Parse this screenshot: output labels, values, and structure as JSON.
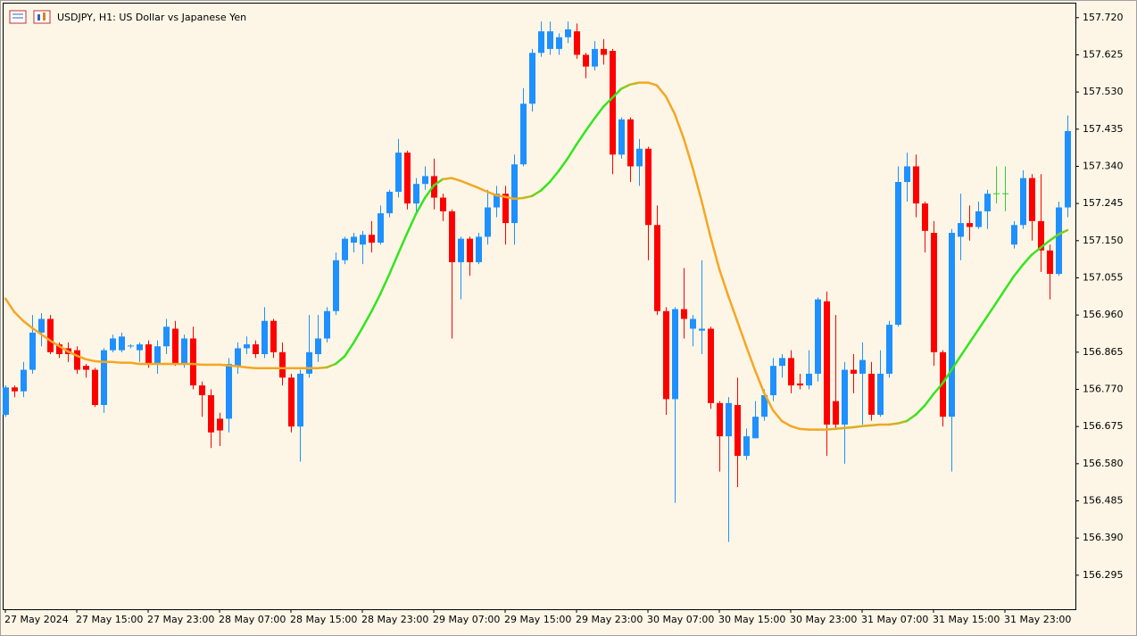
{
  "chart_data": {
    "type": "candlestick",
    "title": "USDJPY, H1:  US Dollar vs Japanese Yen",
    "categories": [
      "27 May 2024",
      null,
      null,
      null,
      null,
      null,
      null,
      null,
      "27 May 15:00",
      null,
      null,
      null,
      null,
      null,
      null,
      null,
      "27 May 23:00",
      null,
      null,
      null,
      null,
      null,
      null,
      null,
      "28 May 07:00",
      null,
      null,
      null,
      null,
      null,
      null,
      null,
      "28 May 15:00",
      null,
      null,
      null,
      null,
      null,
      null,
      null,
      "28 May 23:00",
      null,
      null,
      null,
      null,
      null,
      null,
      null,
      "29 May 07:00",
      null,
      null,
      null,
      null,
      null,
      null,
      null,
      "29 May 15:00",
      null,
      null,
      null,
      null,
      null,
      null,
      null,
      "29 May 23:00",
      null,
      null,
      null,
      null,
      null,
      null,
      null,
      "30 May 07:00",
      null,
      null,
      null,
      null,
      null,
      null,
      null,
      "30 May 15:00",
      null,
      null,
      null,
      null,
      null,
      null,
      null,
      "30 May 23:00",
      null,
      null,
      null,
      null,
      null,
      null,
      null,
      "31 May 07:00",
      null,
      null,
      null,
      null,
      null,
      null,
      null,
      "31 May 15:00",
      null,
      null,
      null,
      null,
      null,
      null,
      null,
      "31 May 23:00",
      null,
      null,
      null,
      null,
      null,
      null,
      null
    ],
    "open": [
      156.705,
      156.775,
      156.765,
      156.82,
      156.915,
      156.95,
      156.885,
      156.875,
      156.87,
      156.83,
      156.82,
      156.73,
      156.87,
      156.87,
      156.88,
      156.87,
      156.885,
      156.835,
      156.88,
      156.925,
      156.835,
      156.9,
      156.78,
      156.755,
      156.695,
      156.695,
      156.83,
      156.875,
      156.885,
      156.86,
      156.945,
      156.865,
      156.8,
      156.675,
      156.81,
      156.86,
      156.9,
      156.97,
      157.1,
      157.145,
      157.14,
      157.165,
      157.145,
      157.22,
      157.275,
      157.375,
      157.245,
      157.295,
      157.315,
      157.26,
      157.225,
      157.095,
      157.155,
      157.095,
      157.16,
      157.235,
      157.27,
      157.195,
      157.345,
      157.5,
      157.63,
      157.64,
      157.64,
      157.67,
      157.685,
      157.625,
      157.595,
      157.64,
      157.635,
      157.37,
      157.46,
      157.34,
      157.385,
      157.19,
      156.97,
      156.745,
      156.975,
      156.925,
      156.92,
      156.925,
      156.735,
      156.65,
      156.73,
      156.6,
      156.645,
      156.7,
      156.755,
      156.83,
      156.85,
      156.785,
      156.78,
      156.81,
      156.995,
      156.74,
      156.68,
      156.82,
      156.81,
      156.81,
      156.705,
      156.81,
      156.935,
      157.3,
      157.34,
      157.245,
      157.17,
      156.865,
      156.7,
      157.16,
      157.195,
      157.185,
      157.225,
      157.27,
      157.27,
      157.14,
      157.19,
      157.31,
      157.2,
      157.125,
      157.065,
      157.235
    ],
    "high": [
      156.78,
      156.78,
      156.84,
      156.96,
      156.965,
      156.96,
      156.89,
      156.89,
      156.88,
      156.835,
      156.825,
      156.875,
      156.91,
      156.915,
      156.885,
      156.89,
      156.895,
      156.895,
      156.95,
      156.945,
      156.91,
      156.93,
      156.79,
      156.77,
      156.71,
      156.85,
      156.89,
      156.905,
      156.895,
      156.98,
      156.95,
      156.89,
      156.81,
      156.82,
      156.96,
      156.96,
      156.98,
      157.12,
      157.16,
      157.17,
      157.175,
      157.2,
      157.24,
      157.28,
      157.41,
      157.38,
      157.31,
      157.34,
      157.36,
      157.27,
      157.23,
      157.16,
      157.16,
      157.17,
      157.28,
      157.29,
      157.29,
      157.37,
      157.54,
      157.64,
      157.71,
      157.71,
      157.68,
      157.71,
      157.705,
      157.63,
      157.66,
      157.665,
      157.64,
      157.465,
      157.465,
      157.41,
      157.39,
      157.24,
      156.98,
      156.98,
      157.08,
      156.96,
      157.1,
      156.93,
      156.74,
      156.75,
      156.8,
      156.67,
      156.74,
      156.77,
      156.85,
      156.86,
      156.87,
      156.81,
      156.87,
      157.005,
      157.02,
      156.96,
      156.84,
      156.86,
      156.89,
      156.84,
      156.87,
      156.945,
      157.34,
      157.375,
      157.37,
      157.25,
      157.2,
      156.87,
      157.18,
      157.27,
      157.24,
      157.25,
      157.28,
      157.34,
      157.34,
      157.2,
      157.33,
      157.32,
      157.32,
      157.14,
      157.25,
      157.47
    ],
    "low": [
      156.7,
      156.75,
      156.75,
      156.81,
      156.88,
      156.86,
      156.85,
      156.84,
      156.81,
      156.8,
      156.725,
      156.71,
      156.865,
      156.865,
      156.875,
      156.84,
      156.825,
      156.81,
      156.86,
      156.83,
      156.825,
      156.77,
      156.7,
      156.62,
      156.625,
      156.66,
      156.81,
      156.86,
      156.85,
      156.85,
      156.85,
      156.78,
      156.66,
      156.585,
      156.8,
      156.84,
      156.89,
      156.96,
      157.09,
      157.12,
      157.09,
      157.12,
      157.14,
      157.21,
      157.26,
      157.23,
      157.22,
      157.28,
      157.23,
      157.2,
      156.9,
      157.0,
      157.06,
      157.09,
      157.14,
      157.21,
      157.14,
      157.14,
      157.34,
      157.48,
      157.62,
      157.625,
      157.625,
      157.655,
      157.615,
      157.565,
      157.585,
      157.6,
      157.32,
      157.36,
      157.3,
      157.29,
      157.1,
      156.96,
      156.705,
      156.48,
      156.9,
      156.88,
      156.86,
      156.72,
      156.56,
      156.38,
      156.52,
      156.59,
      156.645,
      156.69,
      156.74,
      156.8,
      156.76,
      156.77,
      156.77,
      156.79,
      156.6,
      156.67,
      156.58,
      156.76,
      156.68,
      156.69,
      156.7,
      156.8,
      156.93,
      157.25,
      157.21,
      157.12,
      156.83,
      156.675,
      156.56,
      157.1,
      157.15,
      157.18,
      157.18,
      157.245,
      157.225,
      157.13,
      157.18,
      157.15,
      157.07,
      157.0,
      157.06,
      157.21
    ],
    "close": [
      156.775,
      156.765,
      156.82,
      156.915,
      156.95,
      156.865,
      156.86,
      156.86,
      156.82,
      156.82,
      156.73,
      156.87,
      156.9,
      156.905,
      156.882,
      156.885,
      156.835,
      156.88,
      156.93,
      156.835,
      156.9,
      156.78,
      156.755,
      156.66,
      156.665,
      156.835,
      156.875,
      156.885,
      156.86,
      156.945,
      156.865,
      156.8,
      156.675,
      156.81,
      156.865,
      156.9,
      156.97,
      157.1,
      157.155,
      157.16,
      157.165,
      157.145,
      157.22,
      157.275,
      157.375,
      157.245,
      157.295,
      157.315,
      157.26,
      157.225,
      157.095,
      157.155,
      157.095,
      157.16,
      157.235,
      157.27,
      157.195,
      157.345,
      157.5,
      157.63,
      157.685,
      157.685,
      157.67,
      157.69,
      157.625,
      157.595,
      157.64,
      157.625,
      157.37,
      157.46,
      157.34,
      157.385,
      157.19,
      156.97,
      156.745,
      156.975,
      156.95,
      156.95,
      156.925,
      156.735,
      156.65,
      156.735,
      156.6,
      156.65,
      156.7,
      156.755,
      156.83,
      156.85,
      156.78,
      156.78,
      156.81,
      157.0,
      156.68,
      156.68,
      156.82,
      156.81,
      156.845,
      156.705,
      156.81,
      156.935,
      157.3,
      157.34,
      157.245,
      157.175,
      156.865,
      156.7,
      157.17,
      157.195,
      157.185,
      157.225,
      157.27,
      157.27,
      157.27,
      157.19,
      157.31,
      157.2,
      157.125,
      157.065,
      157.235,
      157.43
    ],
    "colors": {
      "up": "#1e90ff",
      "down": "#ff0000",
      "doji": "#32cd32"
    },
    "ma": {
      "values": [
        157.002,
        156.968,
        156.945,
        156.927,
        156.911,
        156.895,
        156.881,
        156.867,
        156.856,
        156.847,
        156.842,
        156.84,
        156.84,
        156.838,
        156.838,
        156.835,
        156.835,
        156.835,
        156.835,
        156.835,
        156.835,
        156.835,
        156.833,
        156.833,
        156.833,
        156.831,
        156.829,
        156.826,
        156.824,
        156.824,
        156.824,
        156.824,
        156.824,
        156.824,
        156.824,
        156.824,
        156.826,
        156.835,
        156.854,
        156.888,
        156.927,
        156.968,
        157.013,
        157.063,
        157.116,
        157.168,
        157.218,
        157.259,
        157.291,
        157.307,
        157.31,
        157.303,
        157.294,
        157.285,
        157.275,
        157.266,
        157.262,
        157.257,
        157.259,
        157.264,
        157.278,
        157.3,
        157.328,
        157.36,
        157.396,
        157.43,
        157.462,
        157.492,
        157.515,
        157.538,
        157.549,
        157.554,
        157.554,
        157.547,
        157.519,
        157.474,
        157.412,
        157.337,
        157.253,
        157.161,
        157.077,
        157.009,
        156.945,
        156.881,
        156.819,
        156.762,
        156.717,
        156.689,
        156.676,
        156.669,
        156.667,
        156.667,
        156.667,
        156.669,
        156.671,
        156.673,
        156.676,
        156.678,
        156.68,
        156.68,
        156.683,
        156.689,
        156.705,
        156.728,
        156.758,
        156.785,
        156.819,
        156.854,
        156.888,
        156.922,
        156.956,
        156.99,
        157.025,
        157.059,
        157.088,
        157.114,
        157.132,
        157.15,
        157.166,
        157.177
      ],
      "color_up": "#32e61e",
      "color_down": "#f5a623"
    },
    "ylim": [
      156.208,
      157.756
    ],
    "yticks": [
      {
        "value": 157.72,
        "label": "157.720"
      },
      157.625,
      {
        "value": 157.53,
        "label": "157.530"
      },
      157.435,
      {
        "value": 157.34,
        "label": "157.340"
      },
      157.245,
      {
        "value": 157.15,
        "label": "157.150"
      },
      157.055,
      {
        "value": 156.96,
        "label": "156.960"
      },
      156.865,
      {
        "value": 156.77,
        "label": "156.770"
      },
      156.675,
      {
        "value": 156.58,
        "label": "156.580"
      },
      156.485,
      {
        "value": 156.39,
        "label": "156.390"
      },
      156.295
    ],
    "grid": false
  }
}
